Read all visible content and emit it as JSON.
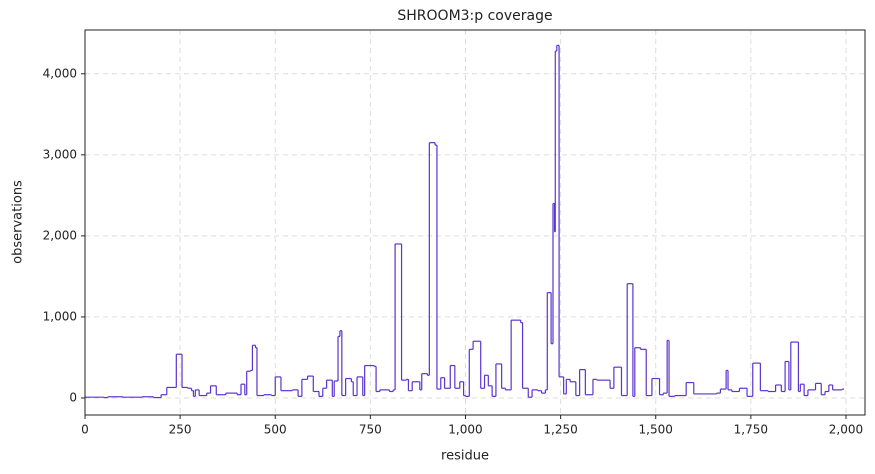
{
  "chart_data": {
    "type": "line",
    "step": "post",
    "title": "SHROOM3:p coverage",
    "x_label": "residue",
    "y_label": "observations",
    "color": "#5b34cf",
    "grid": true,
    "xlim": [
      0,
      2050
    ],
    "ylim": [
      -210,
      4540
    ],
    "xticks": [
      0,
      250,
      500,
      750,
      {
        "value": 1000,
        "label": "1,000"
      },
      {
        "value": 1250,
        "label": "1,250"
      },
      {
        "value": 1500,
        "label": "1,500"
      },
      {
        "value": 1750,
        "label": "1,750"
      },
      {
        "value": 2000,
        "label": "2,000"
      }
    ],
    "yticks": [
      0,
      {
        "value": 1000,
        "label": "1,000"
      },
      {
        "value": 2000,
        "label": "2,000"
      },
      {
        "value": 3000,
        "label": "3,000"
      },
      {
        "value": 4000,
        "label": "4,000"
      }
    ],
    "x": [
      0,
      50,
      60,
      100,
      150,
      180,
      200,
      215,
      240,
      255,
      270,
      280,
      285,
      290,
      300,
      320,
      330,
      345,
      370,
      400,
      410,
      420,
      425,
      435,
      440,
      448,
      452,
      470,
      490,
      500,
      515,
      545,
      560,
      570,
      585,
      600,
      615,
      625,
      635,
      650,
      655,
      665,
      670,
      675,
      685,
      700,
      705,
      715,
      730,
      735,
      760,
      765,
      775,
      800,
      810,
      815,
      832,
      845,
      850,
      860,
      880,
      885,
      900,
      905,
      920,
      925,
      935,
      945,
      960,
      972,
      985,
      995,
      1000,
      1010,
      1020,
      1040,
      1050,
      1060,
      1070,
      1080,
      1095,
      1105,
      1120,
      1145,
      1150,
      1165,
      1175,
      1190,
      1200,
      1210,
      1215,
      1225,
      1230,
      1234,
      1236,
      1240,
      1246,
      1258,
      1265,
      1275,
      1290,
      1300,
      1315,
      1335,
      1345,
      1380,
      1390,
      1410,
      1425,
      1440,
      1445,
      1460,
      1475,
      1490,
      1510,
      1520,
      1530,
      1535,
      1550,
      1580,
      1600,
      1660,
      1670,
      1685,
      1690,
      1700,
      1720,
      1740,
      1755,
      1775,
      1795,
      1815,
      1830,
      1840,
      1850,
      1855,
      1875,
      1880,
      1890,
      1900,
      1920,
      1935,
      1945,
      1955,
      1965,
      1990,
      1995
    ],
    "values": [
      10,
      5,
      15,
      10,
      15,
      5,
      40,
      130,
      540,
      130,
      120,
      90,
      20,
      100,
      30,
      60,
      150,
      40,
      60,
      40,
      170,
      40,
      330,
      340,
      650,
      620,
      30,
      40,
      30,
      260,
      90,
      100,
      20,
      230,
      270,
      80,
      20,
      120,
      220,
      20,
      210,
      760,
      830,
      30,
      240,
      200,
      30,
      260,
      30,
      400,
      390,
      80,
      100,
      80,
      100,
      1900,
      220,
      230,
      90,
      200,
      100,
      300,
      280,
      3150,
      3120,
      110,
      250,
      120,
      400,
      120,
      200,
      30,
      20,
      600,
      700,
      120,
      280,
      150,
      20,
      420,
      120,
      100,
      960,
      930,
      120,
      10,
      100,
      90,
      60,
      100,
      1300,
      670,
      2400,
      2050,
      4280,
      4350,
      260,
      50,
      230,
      200,
      30,
      350,
      40,
      230,
      220,
      120,
      380,
      30,
      1410,
      20,
      620,
      600,
      30,
      240,
      40,
      60,
      710,
      20,
      30,
      190,
      50,
      60,
      110,
      340,
      100,
      80,
      120,
      20,
      430,
      90,
      80,
      160,
      80,
      450,
      100,
      690,
      80,
      170,
      30,
      100,
      180,
      40,
      80,
      160,
      100,
      110,
      110
    ]
  }
}
